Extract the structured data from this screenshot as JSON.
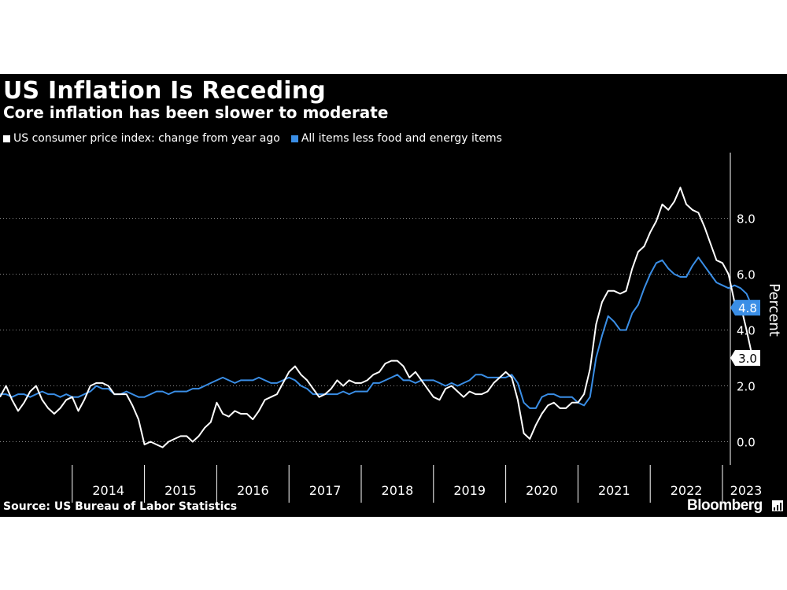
{
  "header": {
    "title": "US Inflation Is Receding",
    "subtitle": "Core inflation has been slower to moderate"
  },
  "footer": {
    "source": "Source: US Bureau of Labor Statistics",
    "brand": "Bloomberg"
  },
  "colors": {
    "background": "#000000",
    "headline": "#ffffff",
    "core": "#3a8ee6",
    "grid": "#8a8a8a"
  },
  "chart_data": {
    "type": "line",
    "title": "US Inflation Is Receding",
    "subtitle": "Core inflation has been slower to moderate",
    "ylabel": "Percent",
    "ylim": [
      -1,
      10
    ],
    "yticks": [
      0,
      2,
      4,
      6,
      8
    ],
    "ytick_labels": [
      "0.0",
      "2.0",
      "4.0",
      "6.0",
      "8.0"
    ],
    "xlim": [
      "2013-01",
      "2023-05"
    ],
    "xtick_labels": [
      "2014",
      "2015",
      "2016",
      "2017",
      "2018",
      "2019",
      "2020",
      "2021",
      "2022",
      "2023"
    ],
    "grid": "horizontal dotted",
    "legend": "top-left",
    "x_start": "2013-01",
    "series": [
      {
        "name": "US consumer price index: change from year ago",
        "color": "#ffffff",
        "end_label": "3.0",
        "values": [
          1.6,
          2.0,
          1.5,
          1.1,
          1.4,
          1.8,
          2.0,
          1.5,
          1.2,
          1.0,
          1.2,
          1.5,
          1.6,
          1.1,
          1.5,
          2.0,
          2.1,
          2.1,
          2.0,
          1.7,
          1.7,
          1.7,
          1.3,
          0.8,
          -0.1,
          0.0,
          -0.1,
          -0.2,
          0.0,
          0.1,
          0.2,
          0.2,
          0.0,
          0.2,
          0.5,
          0.7,
          1.4,
          1.0,
          0.9,
          1.1,
          1.0,
          1.0,
          0.8,
          1.1,
          1.5,
          1.6,
          1.7,
          2.1,
          2.5,
          2.7,
          2.4,
          2.2,
          1.9,
          1.6,
          1.7,
          1.9,
          2.2,
          2.0,
          2.2,
          2.1,
          2.1,
          2.2,
          2.4,
          2.5,
          2.8,
          2.9,
          2.9,
          2.7,
          2.3,
          2.5,
          2.2,
          1.9,
          1.6,
          1.5,
          1.9,
          2.0,
          1.8,
          1.6,
          1.8,
          1.7,
          1.7,
          1.8,
          2.1,
          2.3,
          2.5,
          2.3,
          1.5,
          0.3,
          0.1,
          0.6,
          1.0,
          1.3,
          1.4,
          1.2,
          1.2,
          1.4,
          1.4,
          1.7,
          2.6,
          4.2,
          5.0,
          5.4,
          5.4,
          5.3,
          5.4,
          6.2,
          6.8,
          7.0,
          7.5,
          7.9,
          8.5,
          8.3,
          8.6,
          9.1,
          8.5,
          8.3,
          8.2,
          7.7,
          7.1,
          6.5,
          6.4,
          6.0,
          5.0,
          4.9,
          4.0,
          3.0
        ]
      },
      {
        "name": "All items less food and energy items",
        "color": "#3a8ee6",
        "end_label": "4.8",
        "values": [
          1.7,
          1.7,
          1.6,
          1.7,
          1.7,
          1.6,
          1.7,
          1.8,
          1.7,
          1.7,
          1.6,
          1.7,
          1.6,
          1.6,
          1.7,
          1.8,
          2.0,
          1.9,
          1.9,
          1.7,
          1.7,
          1.8,
          1.7,
          1.6,
          1.6,
          1.7,
          1.8,
          1.8,
          1.7,
          1.8,
          1.8,
          1.8,
          1.9,
          1.9,
          2.0,
          2.1,
          2.2,
          2.3,
          2.2,
          2.1,
          2.2,
          2.2,
          2.2,
          2.3,
          2.2,
          2.1,
          2.1,
          2.2,
          2.3,
          2.2,
          2.0,
          1.9,
          1.7,
          1.7,
          1.7,
          1.7,
          1.7,
          1.8,
          1.7,
          1.8,
          1.8,
          1.8,
          2.1,
          2.1,
          2.2,
          2.3,
          2.4,
          2.2,
          2.2,
          2.1,
          2.2,
          2.2,
          2.2,
          2.1,
          2.0,
          2.1,
          2.0,
          2.1,
          2.2,
          2.4,
          2.4,
          2.3,
          2.3,
          2.3,
          2.3,
          2.4,
          2.1,
          1.4,
          1.2,
          1.2,
          1.6,
          1.7,
          1.7,
          1.6,
          1.6,
          1.6,
          1.4,
          1.3,
          1.6,
          3.0,
          3.8,
          4.5,
          4.3,
          4.0,
          4.0,
          4.6,
          4.9,
          5.5,
          6.0,
          6.4,
          6.5,
          6.2,
          6.0,
          5.9,
          5.9,
          6.3,
          6.6,
          6.3,
          6.0,
          5.7,
          5.6,
          5.5,
          5.6,
          5.5,
          5.3,
          4.8
        ]
      }
    ]
  }
}
